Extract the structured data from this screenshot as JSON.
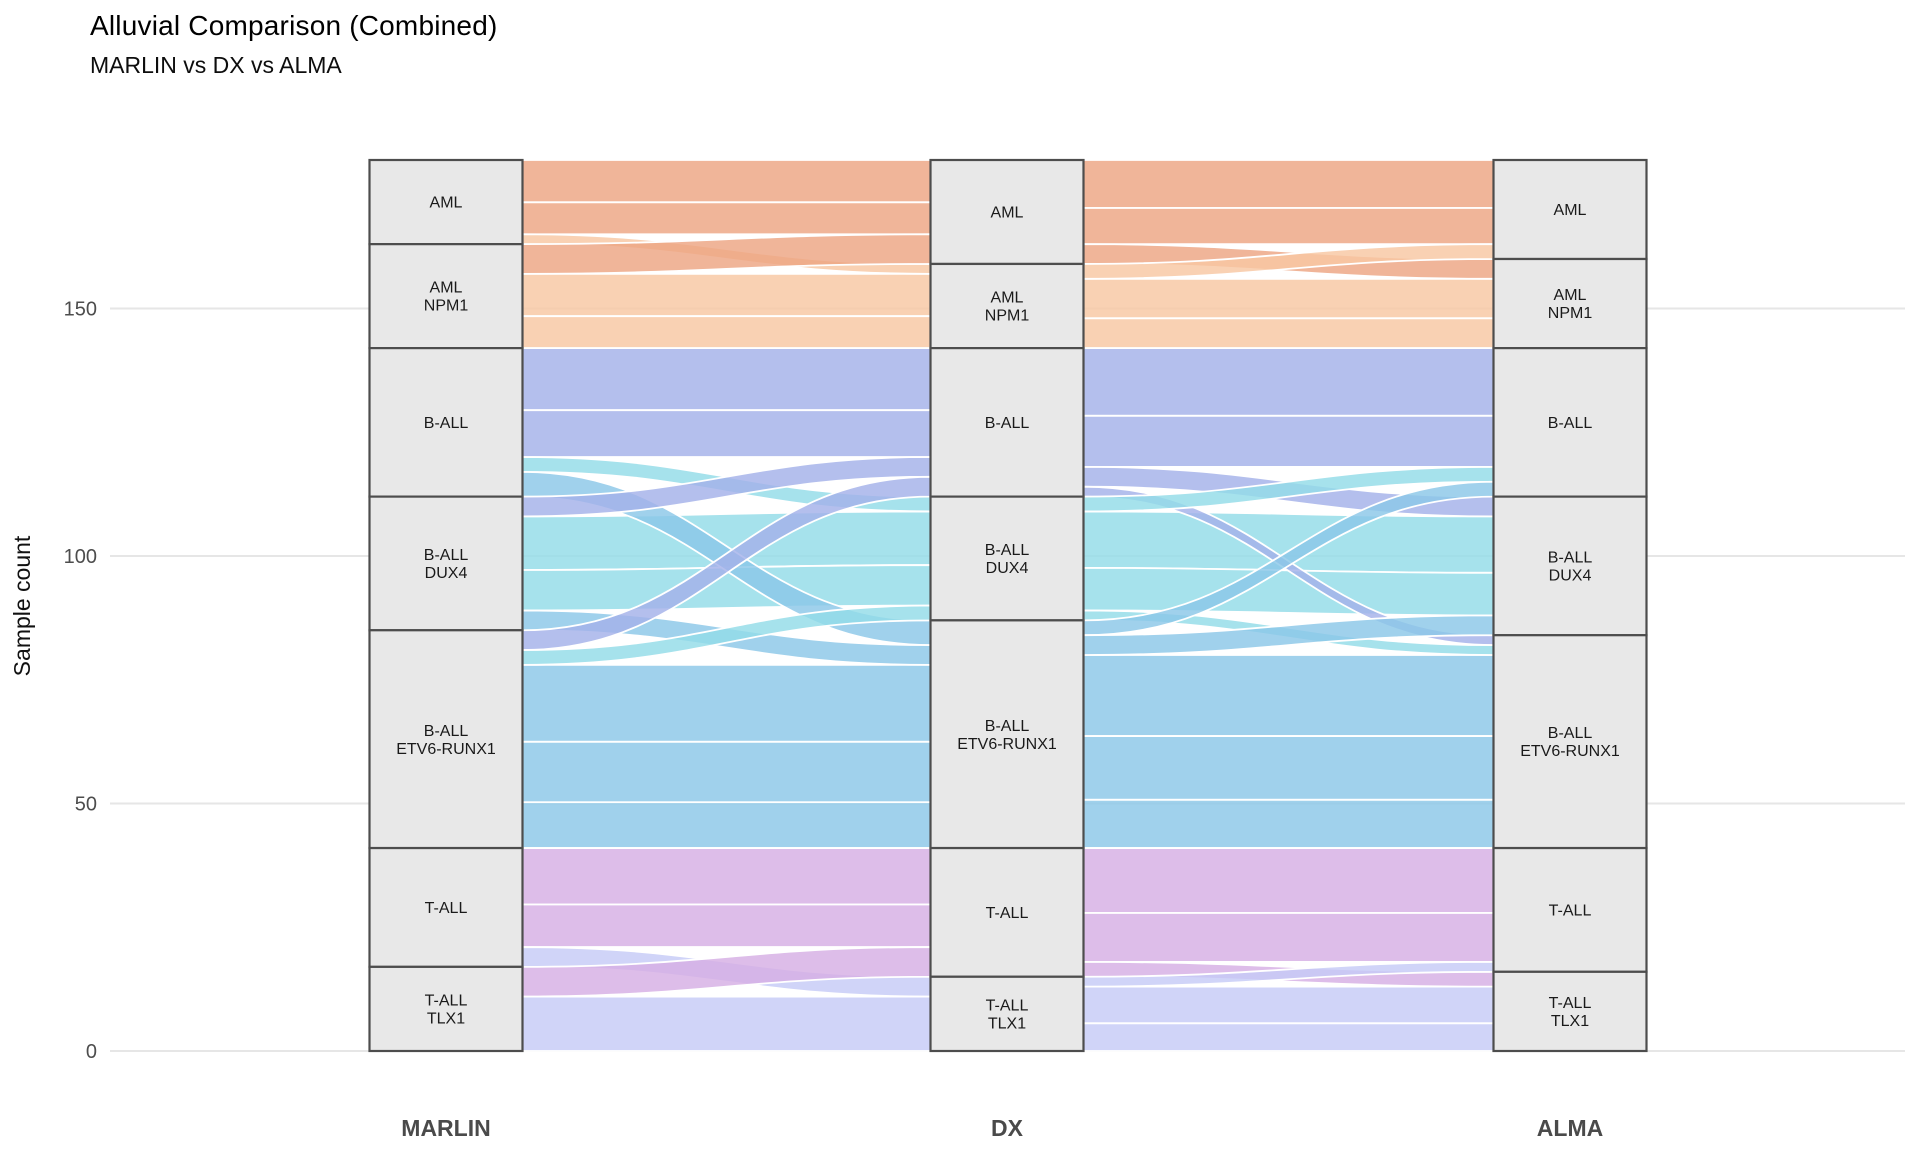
{
  "title": "Alluvial Comparison (Combined)",
  "subtitle": "MARLIN vs DX vs ALMA",
  "y_axis": {
    "label": "Sample count",
    "ticks": [
      0,
      50,
      100,
      150
    ],
    "range": [
      0,
      180
    ]
  },
  "chart_data": {
    "type": "alluvial",
    "title": "Alluvial Comparison (Combined)",
    "subtitle": "MARLIN vs DX vs ALMA",
    "ylabel": "Sample count",
    "ylim": [
      0,
      180
    ],
    "grid": "horizontal-only",
    "axes": [
      "MARLIN",
      "DX",
      "ALMA"
    ],
    "strata": [
      {
        "id": "AML",
        "lines": [
          "AML"
        ]
      },
      {
        "id": "AML NPM1",
        "lines": [
          "AML",
          "NPM1"
        ]
      },
      {
        "id": "B-ALL",
        "lines": [
          "B-ALL"
        ]
      },
      {
        "id": "B-ALL DUX4",
        "lines": [
          "B-ALL",
          "DUX4"
        ]
      },
      {
        "id": "B-ALL ETV6-RUNX1",
        "lines": [
          "B-ALL",
          "ETV6-RUNX1"
        ]
      },
      {
        "id": "T-ALL",
        "lines": [
          "T-ALL"
        ]
      },
      {
        "id": "T-ALL TLX1",
        "lines": [
          "T-ALL",
          "TLX1"
        ]
      }
    ],
    "counts": {
      "MARLIN": [
        17,
        21,
        30,
        27,
        44,
        24,
        17
      ],
      "DX": [
        21,
        17,
        30,
        25,
        46,
        26,
        15
      ],
      "ALMA": [
        20,
        18,
        30,
        28,
        43,
        25,
        16
      ]
    },
    "flows_marlin_dx": [
      {
        "from": "AML",
        "to": "AML",
        "n": 15
      },
      {
        "from": "AML",
        "to": "AML NPM1",
        "n": 2
      },
      {
        "from": "AML NPM1",
        "to": "AML",
        "n": 6
      },
      {
        "from": "AML NPM1",
        "to": "AML NPM1",
        "n": 15
      },
      {
        "from": "B-ALL",
        "to": "B-ALL",
        "n": 22
      },
      {
        "from": "B-ALL",
        "to": "B-ALL DUX4",
        "n": 3
      },
      {
        "from": "B-ALL",
        "to": "B-ALL ETV6-RUNX1",
        "n": 5
      },
      {
        "from": "B-ALL DUX4",
        "to": "B-ALL",
        "n": 4
      },
      {
        "from": "B-ALL DUX4",
        "to": "B-ALL DUX4",
        "n": 19
      },
      {
        "from": "B-ALL DUX4",
        "to": "B-ALL ETV6-RUNX1",
        "n": 4
      },
      {
        "from": "B-ALL ETV6-RUNX1",
        "to": "B-ALL",
        "n": 4
      },
      {
        "from": "B-ALL ETV6-RUNX1",
        "to": "B-ALL DUX4",
        "n": 3
      },
      {
        "from": "B-ALL ETV6-RUNX1",
        "to": "B-ALL ETV6-RUNX1",
        "n": 37
      },
      {
        "from": "T-ALL",
        "to": "T-ALL",
        "n": 20
      },
      {
        "from": "T-ALL",
        "to": "T-ALL TLX1",
        "n": 4
      },
      {
        "from": "T-ALL TLX1",
        "to": "T-ALL",
        "n": 6
      },
      {
        "from": "T-ALL TLX1",
        "to": "T-ALL TLX1",
        "n": 11
      }
    ],
    "flows_dx_alma": [
      {
        "from": "AML",
        "to": "AML",
        "n": 17
      },
      {
        "from": "AML",
        "to": "AML NPM1",
        "n": 4
      },
      {
        "from": "AML NPM1",
        "to": "AML",
        "n": 3
      },
      {
        "from": "AML NPM1",
        "to": "AML NPM1",
        "n": 14
      },
      {
        "from": "B-ALL",
        "to": "B-ALL",
        "n": 24
      },
      {
        "from": "B-ALL",
        "to": "B-ALL DUX4",
        "n": 4
      },
      {
        "from": "B-ALL",
        "to": "B-ALL ETV6-RUNX1",
        "n": 2
      },
      {
        "from": "B-ALL DUX4",
        "to": "B-ALL",
        "n": 3
      },
      {
        "from": "B-ALL DUX4",
        "to": "B-ALL DUX4",
        "n": 20
      },
      {
        "from": "B-ALL DUX4",
        "to": "B-ALL ETV6-RUNX1",
        "n": 2
      },
      {
        "from": "B-ALL ETV6-RUNX1",
        "to": "B-ALL",
        "n": 3
      },
      {
        "from": "B-ALL ETV6-RUNX1",
        "to": "B-ALL DUX4",
        "n": 4
      },
      {
        "from": "B-ALL ETV6-RUNX1",
        "to": "B-ALL ETV6-RUNX1",
        "n": 39
      },
      {
        "from": "T-ALL",
        "to": "T-ALL",
        "n": 23
      },
      {
        "from": "T-ALL",
        "to": "T-ALL TLX1",
        "n": 3
      },
      {
        "from": "T-ALL TLX1",
        "to": "T-ALL",
        "n": 2
      },
      {
        "from": "T-ALL TLX1",
        "to": "T-ALL TLX1",
        "n": 13
      }
    ],
    "flow_color_rule": "ribbon colored by DX-axis stratum",
    "colors": {
      "AML": "#EDA582",
      "AML NPM1": "#F8C7A2",
      "B-ALL": "#A3B1E9",
      "B-ALL DUX4": "#93DCE8",
      "B-ALL ETV6-RUNX1": "#8BC7E8",
      "T-ALL": "#D5AFE4",
      "T-ALL TLX1": "#C6CBF6"
    },
    "style": {
      "stratum_fill": "#E8E8E8",
      "stratum_border": "#4D4D4D",
      "gridline_color": "#E6E6E6",
      "tick_label_color": "#4D4D4D",
      "axis_label_color": "#4A4A4A",
      "stratum_text_color": "#1A1A1A"
    }
  }
}
